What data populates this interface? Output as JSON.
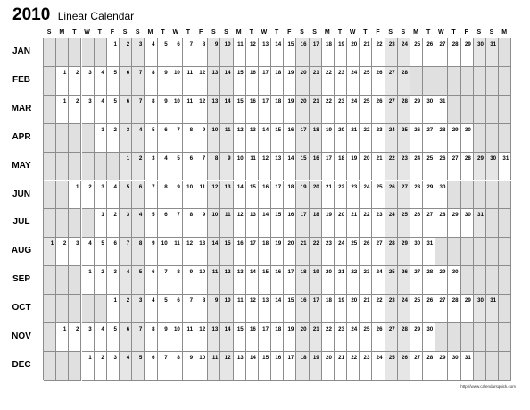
{
  "header": {
    "year": "2010",
    "title": "Linear Calendar"
  },
  "day_headers": [
    "S",
    "M",
    "T",
    "W",
    "T",
    "F",
    "S",
    "S",
    "M",
    "T",
    "W",
    "T",
    "F",
    "S",
    "S",
    "M",
    "T",
    "W",
    "T",
    "F",
    "S",
    "S",
    "M",
    "T",
    "W",
    "T",
    "F",
    "S",
    "S",
    "M",
    "T",
    "W",
    "T",
    "F",
    "S",
    "S",
    "M"
  ],
  "months": [
    {
      "label": "JAN",
      "start_col": 5,
      "days": 31
    },
    {
      "label": "FEB",
      "start_col": 1,
      "days": 28
    },
    {
      "label": "MAR",
      "start_col": 1,
      "days": 31
    },
    {
      "label": "APR",
      "start_col": 4,
      "days": 30
    },
    {
      "label": "MAY",
      "start_col": 6,
      "days": 31
    },
    {
      "label": "JUN",
      "start_col": 2,
      "days": 30
    },
    {
      "label": "JUL",
      "start_col": 4,
      "days": 31
    },
    {
      "label": "AUG",
      "start_col": 0,
      "days": 31
    },
    {
      "label": "SEP",
      "start_col": 3,
      "days": 30
    },
    {
      "label": "OCT",
      "start_col": 5,
      "days": 31
    },
    {
      "label": "NOV",
      "start_col": 1,
      "days": 30
    },
    {
      "label": "DEC",
      "start_col": 3,
      "days": 31
    }
  ],
  "footer": {
    "url": "http://www.calendarsquick.com"
  }
}
